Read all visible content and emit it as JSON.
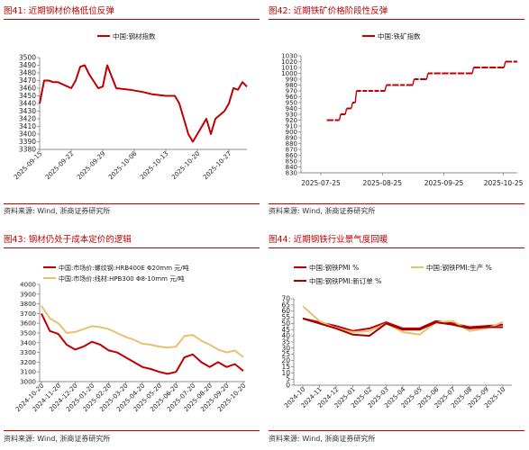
{
  "panels": [
    {
      "title": "图41:  近期钢材价格低位反弹",
      "source": "资料来源:  Wind,  浙商证券研究所"
    },
    {
      "title": "图42:  近期铁矿价格阶段性反弹",
      "source": "资料来源:  Wind,  浙商证券研究所"
    },
    {
      "title": "图43:  钢材仍处于成本定价的逻辑",
      "source": "资料来源:  Wind,  浙商证券研究所"
    },
    {
      "title": "图44:  近期钢铁行业景气度回暖",
      "source": "资料来源:  Wind,  浙商证券研究所"
    }
  ],
  "colors": {
    "red": "#c00000",
    "gold": "#e8c070",
    "dark_red": "#a00000"
  },
  "chart_data": [
    {
      "type": "line",
      "title": "",
      "legend": [
        "中国:钢材指数"
      ],
      "x_ticks": [
        "2025-09-15",
        "2025-09-22",
        "2025-09-29",
        "2025-10-06",
        "2025-10-13",
        "2025-10-20",
        "2025-10-27"
      ],
      "ylim": [
        3380,
        3500
      ],
      "y_ticks": [
        3380,
        3390,
        3400,
        3410,
        3420,
        3430,
        3440,
        3450,
        3460,
        3470,
        3480,
        3490,
        3500
      ],
      "series": [
        {
          "name": "中国:钢材指数",
          "x": [
            "2025-09-15",
            "2025-09-16",
            "2025-09-17",
            "2025-09-18",
            "2025-09-19",
            "2025-09-22",
            "2025-09-23",
            "2025-09-24",
            "2025-09-25",
            "2025-09-26",
            "2025-09-28",
            "2025-09-29",
            "2025-09-30",
            "2025-10-02",
            "2025-10-05",
            "2025-10-08",
            "2025-10-10",
            "2025-10-13",
            "2025-10-15",
            "2025-10-16",
            "2025-10-17",
            "2025-10-18",
            "2025-10-19",
            "2025-10-20",
            "2025-10-21",
            "2025-10-22",
            "2025-10-23",
            "2025-10-24",
            "2025-10-26",
            "2025-10-27",
            "2025-10-28",
            "2025-10-29",
            "2025-10-30",
            "2025-10-31"
          ],
          "values": [
            3440,
            3470,
            3470,
            3468,
            3468,
            3460,
            3470,
            3488,
            3490,
            3478,
            3460,
            3462,
            3490,
            3460,
            3458,
            3455,
            3452,
            3450,
            3450,
            3440,
            3420,
            3400,
            3390,
            3400,
            3410,
            3420,
            3400,
            3420,
            3430,
            3440,
            3460,
            3458,
            3468,
            3462
          ]
        }
      ]
    },
    {
      "type": "line",
      "title": "",
      "legend": [
        "中国:铁矿指数"
      ],
      "x_ticks": [
        "2025-07-25",
        "2025-08-25",
        "2025-09-25",
        "2025-10-25"
      ],
      "ylim": [
        830,
        1030
      ],
      "y_ticks": [
        830,
        840,
        850,
        860,
        870,
        880,
        890,
        900,
        910,
        920,
        930,
        940,
        950,
        960,
        970,
        980,
        990,
        1000,
        1010,
        1020,
        1030
      ],
      "series": [
        {
          "name": "中国:铁矿指数",
          "x": [
            "2025-07-28",
            "2025-08-01",
            "2025-08-04",
            "2025-08-07",
            "2025-08-10",
            "2025-08-12",
            "2025-08-15",
            "2025-08-18",
            "2025-08-21",
            "2025-08-24",
            "2025-08-27",
            "2025-08-30",
            "2025-09-03",
            "2025-09-06",
            "2025-09-10",
            "2025-09-13",
            "2025-09-17",
            "2025-09-20",
            "2025-09-24",
            "2025-09-28",
            "2025-10-02",
            "2025-10-06",
            "2025-10-10",
            "2025-10-14",
            "2025-10-18",
            "2025-10-22",
            "2025-10-26",
            "2025-10-30"
          ],
          "values": [
            920,
            920,
            930,
            940,
            950,
            970,
            970,
            970,
            970,
            970,
            980,
            980,
            980,
            980,
            990,
            990,
            1000,
            1000,
            1000,
            1000,
            1000,
            1000,
            1010,
            1010,
            1010,
            1010,
            1020,
            1020
          ]
        }
      ]
    },
    {
      "type": "line",
      "title": "",
      "legend": [
        "中国:市场价:螺纹钢:HRB400E Φ20mm 元/吨",
        "中国:市场价:线材:HPB300 Φ8-10mm 元/吨"
      ],
      "x_ticks": [
        "2024-10-20",
        "2024-11-20",
        "2024-12-20",
        "2025-01-20",
        "2025-02-20",
        "2025-03-20",
        "2025-04-20",
        "2025-05-20",
        "2025-06-20",
        "2025-07-20",
        "2025-08-20",
        "2025-09-20",
        "2025-10-20"
      ],
      "ylim": [
        3000,
        4000
      ],
      "y_ticks": [
        3000,
        3100,
        3200,
        3300,
        3400,
        3500,
        3600,
        3700,
        3800,
        3900,
        4000
      ],
      "series": [
        {
          "name": "中国:市场价:螺纹钢:HRB400E Φ20mm 元/吨",
          "values": [
            3700,
            3520,
            3490,
            3380,
            3330,
            3360,
            3410,
            3380,
            3320,
            3300,
            3250,
            3200,
            3150,
            3130,
            3100,
            3080,
            3100,
            3250,
            3280,
            3200,
            3150,
            3200,
            3150,
            3180,
            3110
          ]
        },
        {
          "name": "中国:市场价:线材:HPB300 Φ8-10mm 元/吨",
          "values": [
            3780,
            3650,
            3600,
            3500,
            3510,
            3540,
            3570,
            3560,
            3540,
            3500,
            3460,
            3430,
            3390,
            3380,
            3360,
            3350,
            3360,
            3470,
            3480,
            3420,
            3380,
            3330,
            3300,
            3320,
            3250
          ]
        }
      ]
    },
    {
      "type": "line",
      "title": "",
      "legend": [
        "中国:钢铁PMI %",
        "中国:钢铁PMI:生产 %",
        "中国:钢铁PMI:新订单 %"
      ],
      "x_ticks": [
        "2024-10",
        "2024-11",
        "2024-12",
        "2025-01",
        "2025-02",
        "2025-03",
        "2025-04",
        "2025-05",
        "2025-06",
        "2025-07",
        "2025-08",
        "2025-09",
        "2025-10"
      ],
      "ylim": [
        0,
        70
      ],
      "y_ticks": [
        0,
        5,
        10,
        15,
        20,
        25,
        30,
        35,
        40,
        45,
        50,
        55,
        60,
        65,
        70
      ],
      "series": [
        {
          "name": "中国:钢铁PMI %",
          "values": [
            54,
            51,
            48,
            44,
            46,
            51,
            46,
            46,
            52,
            50,
            47,
            48,
            49
          ]
        },
        {
          "name": "中国:钢铁PMI:生产 %",
          "values": [
            64,
            52,
            46,
            43,
            44,
            50,
            43,
            41,
            51,
            52,
            44,
            46,
            51
          ]
        },
        {
          "name": "中国:钢铁PMI:新订单 %",
          "values": [
            54,
            50,
            46,
            41,
            40,
            50,
            45,
            45,
            51,
            49,
            46,
            47,
            47
          ]
        }
      ]
    }
  ]
}
